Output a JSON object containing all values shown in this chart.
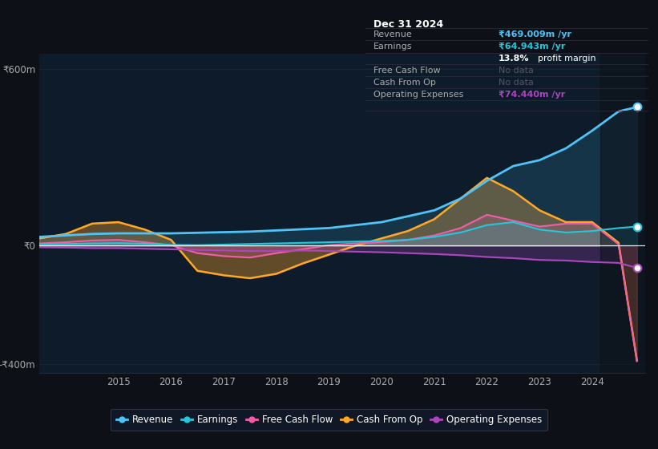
{
  "background_color": "#0d1117",
  "plot_bg_color": "#0d1b2a",
  "years": [
    2013.5,
    2014.0,
    2014.5,
    2015.0,
    2015.5,
    2016.0,
    2016.5,
    2017.0,
    2017.5,
    2018.0,
    2018.5,
    2019.0,
    2019.5,
    2020.0,
    2020.5,
    2021.0,
    2021.5,
    2022.0,
    2022.5,
    2023.0,
    2023.5,
    2024.0,
    2024.5,
    2024.85
  ],
  "revenue": [
    30,
    35,
    40,
    42,
    42,
    42,
    44,
    46,
    48,
    52,
    56,
    60,
    70,
    80,
    100,
    120,
    160,
    220,
    270,
    290,
    330,
    390,
    455,
    470
  ],
  "earnings": [
    5,
    6,
    8,
    9,
    7,
    3,
    2,
    4,
    6,
    8,
    10,
    12,
    14,
    16,
    20,
    30,
    45,
    70,
    80,
    55,
    45,
    50,
    60,
    65
  ],
  "cash_from_op": [
    25,
    40,
    75,
    80,
    55,
    20,
    -85,
    -100,
    -110,
    -95,
    -60,
    -30,
    0,
    25,
    50,
    90,
    160,
    230,
    185,
    120,
    80,
    80,
    10,
    -390
  ],
  "free_cash_flow": [
    8,
    12,
    18,
    20,
    12,
    2,
    -25,
    -35,
    -40,
    -25,
    -12,
    2,
    8,
    12,
    20,
    35,
    60,
    105,
    85,
    65,
    75,
    75,
    5,
    -390
  ],
  "operating_expenses": [
    -5,
    -6,
    -8,
    -8,
    -10,
    -12,
    -14,
    -16,
    -18,
    -18,
    -16,
    -18,
    -20,
    -22,
    -25,
    -28,
    -32,
    -38,
    -42,
    -48,
    -50,
    -55,
    -58,
    -75
  ],
  "ylim": [
    -430,
    650
  ],
  "yticks_vals": [
    -400,
    0,
    600
  ],
  "ytick_labels": [
    "-₹400m",
    "₹0",
    "₹600m"
  ],
  "xticks": [
    2015,
    2016,
    2017,
    2018,
    2019,
    2020,
    2021,
    2022,
    2023,
    2024
  ],
  "revenue_color": "#4fc3f7",
  "earnings_color": "#26c6da",
  "fcf_color": "#ef5fa7",
  "cashop_color": "#ffa726",
  "opex_color": "#ab47bc",
  "info_box": {
    "date": "Dec 31 2024",
    "revenue_label": "Revenue",
    "revenue_value": "₹469.009m /yr",
    "earnings_label": "Earnings",
    "earnings_value": "₹64.943m /yr",
    "margin_value": "13.8%",
    "margin_text": "profit margin",
    "fcf_label": "Free Cash Flow",
    "fcf_value": "No data",
    "cashop_label": "Cash From Op",
    "cashop_value": "No data",
    "opex_label": "Operating Expenses",
    "opex_value": "₹74.440m /yr"
  },
  "legend_labels": [
    "Revenue",
    "Earnings",
    "Free Cash Flow",
    "Cash From Op",
    "Operating Expenses"
  ]
}
